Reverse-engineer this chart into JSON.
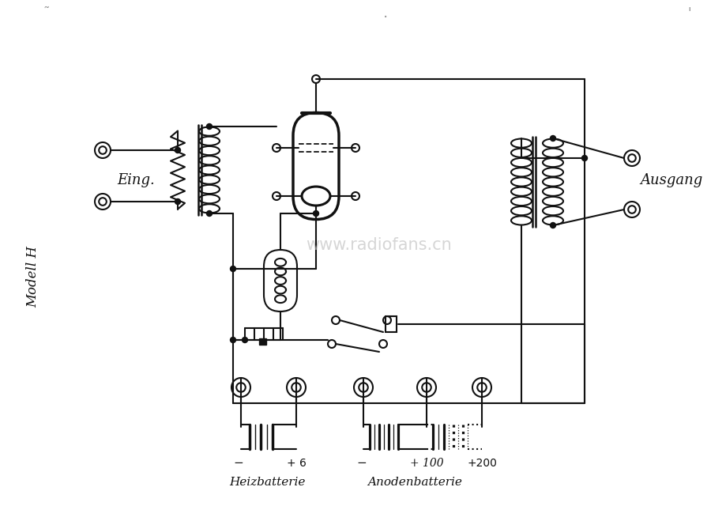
{
  "bg_color": "#ffffff",
  "line_color": "#111111",
  "watermark": "www.radiofans.cn",
  "label_eing": "Eing.",
  "label_ausgang": "Ausgang",
  "label_modell": "Modell H",
  "label_heiz": "Heizbatterie",
  "label_anod": "Anodenbatterie",
  "label_minus1": "−",
  "label_plus6": "+ 6",
  "label_minus2": "−",
  "label_plus100": "+ 100",
  "label_plus200": "+200"
}
